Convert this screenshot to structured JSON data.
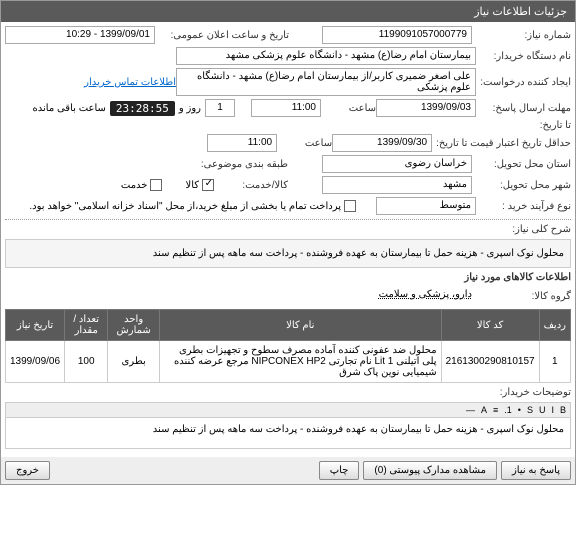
{
  "header": {
    "title": "جزئیات اطلاعات نیاز"
  },
  "form": {
    "request_no_label": "شماره نیاز:",
    "request_no": "1199091057000779",
    "announce_label": "تاریخ و ساعت اعلان عمومی:",
    "announce_value": "1399/09/01 - 10:29",
    "buyer_label": "نام دستگاه خریدار:",
    "buyer_value": "بیمارستان امام رضا(ع) مشهد - دانشگاه علوم پزشکی مشهد",
    "creator_label": "ایجاد کننده درخواست:",
    "creator_value": "علی اصغر ضمیری کاربر/از بیمارستان امام رضا(ع) مشهد - دانشگاه علوم پزشکی",
    "contact_link": "اطلاعات تماس خریدار",
    "deadline_label": "مهلت ارسال پاسخ:",
    "deadline_date": "1399/09/03",
    "time_label": "ساعت",
    "deadline_time": "11:00",
    "countdown_days": "1",
    "countdown_days_label": "روز و",
    "countdown_time": "23:28:55",
    "countdown_suffix": "ساعت باقی مانده",
    "to_date_label": "تا تاریخ:",
    "validity_label": "حداقل تاریخ اعتبار قیمت تا تاریخ:",
    "validity_date": "1399/09/30",
    "validity_time": "11:00",
    "province_label": "استان محل تحویل:",
    "province_value": "خراسان رضوی",
    "group_class_label": "طبقه بندی موضوعی:",
    "city_label": "شهر محل تحویل:",
    "city_value": "مشهد",
    "item_service_label": "کالا/خدمت:",
    "item_checkbox": "کالا",
    "service_checkbox": "خدمت",
    "purchase_type_label": "نوع فرآیند خرید :",
    "purchase_type_value": "متوسط",
    "payment_note": "پرداخت تمام یا بخشی از مبلغ خرید،از محل \"اسناد خزانه اسلامی\" خواهد بود.",
    "desc_label": "شرح کلی نیاز:",
    "desc_text": "محلول نوک اسپری - هزینه حمل تا بیمارستان به عهده فروشنده - پرداخت سه ماهه پس از تنظیم سند",
    "items_section": "اطلاعات کالاهای مورد نیاز",
    "group_label": "گروه کالا:",
    "group_value": "دارو، پزشکی و سلامت",
    "buyer_notes_label": "توضیحات خریدار:"
  },
  "table": {
    "headers": [
      "ردیف",
      "کد کالا",
      "نام کالا",
      "واحد شمارش",
      "تعداد / مقدار",
      "تاریخ نیاز"
    ],
    "rows": [
      [
        "1",
        "2161300290810157",
        "محلول ضد عفونی کننده آماده مصرف سطوح و تجهیزات بطری پلی اتیلنی Lit 1 نام تجارتی NIPCONEX HP2 مرجع عرضه کننده شیمیایی نوین پاک شرق",
        "بطری",
        "100",
        "1399/09/06"
      ]
    ]
  },
  "editor": {
    "toolbar": [
      "B",
      "I",
      "U",
      "S",
      "•",
      "1.",
      "≡",
      "A",
      "—"
    ],
    "content": "محلول نوک اسپری - هزینه حمل تا بیمارستان به عهده فروشنده - پرداخت سه ماهه پس از تنظیم سند"
  },
  "buttons": {
    "respond": "پاسخ به نیاز",
    "attachments": "مشاهده مدارک پیوستی  (0)",
    "print": "چاپ",
    "exit": "خروج"
  }
}
